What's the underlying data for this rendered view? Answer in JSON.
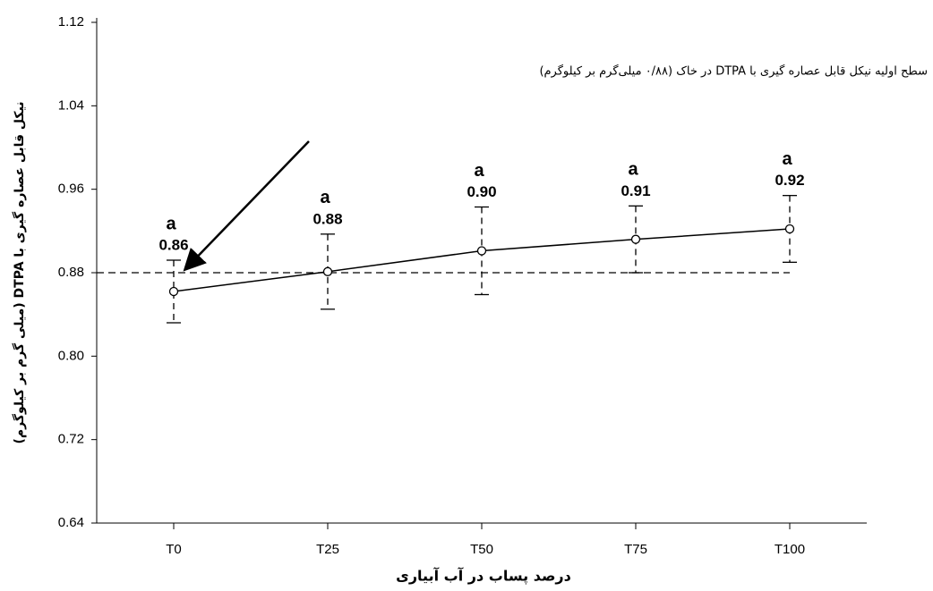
{
  "chart_data": {
    "type": "line",
    "y_label": "نیکل قابل عصاره گیری با DTPA (میلی گرم بر کیلوگرم)",
    "x_label": "درصد پساب در آب آبیاری",
    "annotation": "سطح اولیه نیکل قابل عصاره گیری با DTPA در خاک (۰/۸۸ میلی‌گرم بر کیلوگرم)",
    "categories": [
      "T0",
      "T25",
      "T50",
      "T75",
      "T100"
    ],
    "values": [
      0.862,
      0.881,
      0.901,
      0.912,
      0.922
    ],
    "value_labels": [
      "0.86",
      "0.88",
      "0.90",
      "0.91",
      "0.92"
    ],
    "errors": [
      0.03,
      0.036,
      0.042,
      0.032,
      0.032
    ],
    "letters": [
      "a",
      "a",
      "a",
      "a",
      "a"
    ],
    "reference_line": 0.88,
    "color": "#000000",
    "ylim": [
      0.64,
      1.12
    ],
    "yticks": [
      0.64,
      0.72,
      {
        "value": 0.8,
        "label": "0.80"
      },
      0.88,
      0.96,
      1.04,
      1.12
    ]
  }
}
